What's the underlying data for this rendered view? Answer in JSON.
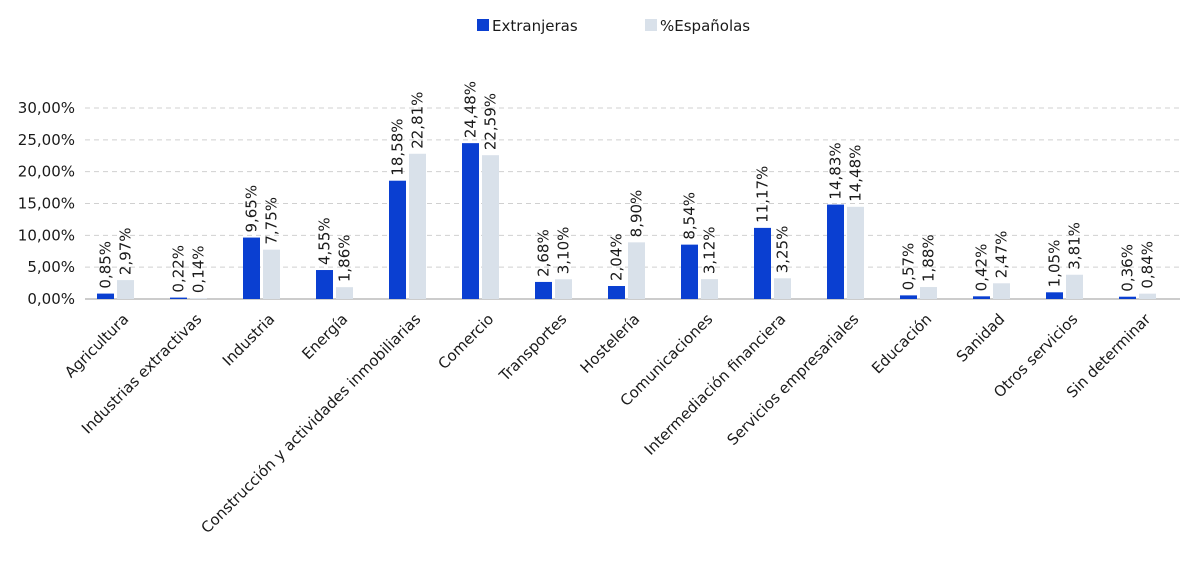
{
  "chart_data": {
    "type": "bar",
    "title": "",
    "xlabel": "",
    "ylabel": "",
    "ylim": [
      0,
      30
    ],
    "y_ticks": [
      "0,00%",
      "5,00%",
      "10,00%",
      "15,00%",
      "20,00%",
      "25,00%",
      "30,00%"
    ],
    "y_tick_values": [
      0,
      5,
      10,
      15,
      20,
      25,
      30
    ],
    "grid": true,
    "legend_position": "top",
    "categories": [
      "Agricultura",
      "Industrias extractivas",
      "Industria",
      "Energía",
      "Construcción y actividades inmobiliarias",
      "Comercio",
      "Transportes",
      "Hostelería",
      "Comunicaciones",
      "Intermediación financiera",
      "Servicios empresariales",
      "Educación",
      "Sanidad",
      "Otros servicios",
      "Sin determinar"
    ],
    "series": [
      {
        "name": "Extranjeras",
        "color": "#0a3fd1",
        "values": [
          0.85,
          0.22,
          9.65,
          4.55,
          18.58,
          24.48,
          2.68,
          2.04,
          8.54,
          11.17,
          14.83,
          0.57,
          0.42,
          1.05,
          0.36
        ],
        "labels": [
          "0,85%",
          "0,22%",
          "9,65%",
          "4,55%",
          "18,58%",
          "24,48%",
          "2,68%",
          "2,04%",
          "8,54%",
          "11,17%",
          "14,83%",
          "0,57%",
          "0,42%",
          "1,05%",
          "0,36%"
        ]
      },
      {
        "name": "%Españolas",
        "color": "#d9e1ea",
        "values": [
          2.97,
          0.14,
          7.75,
          1.86,
          22.81,
          22.59,
          3.1,
          8.9,
          3.12,
          3.25,
          14.48,
          1.88,
          2.47,
          3.81,
          0.84
        ],
        "labels": [
          "2,97%",
          "0,14%",
          "7,75%",
          "1,86%",
          "22,81%",
          "22,59%",
          "3,10%",
          "8,90%",
          "3,12%",
          "3,25%",
          "14,48%",
          "1,88%",
          "2,47%",
          "3,81%",
          "0,84%"
        ]
      }
    ]
  }
}
